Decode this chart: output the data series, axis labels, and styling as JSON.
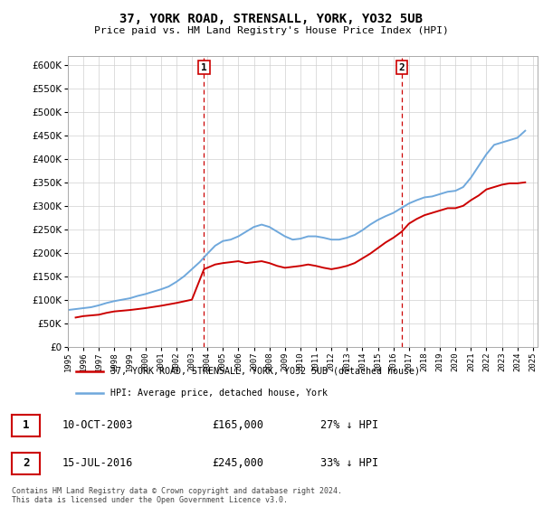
{
  "title": "37, YORK ROAD, STRENSALL, YORK, YO32 5UB",
  "subtitle": "Price paid vs. HM Land Registry's House Price Index (HPI)",
  "ylim": [
    0,
    620000
  ],
  "hpi_color": "#6fa8dc",
  "price_color": "#cc0000",
  "vline_color": "#cc0000",
  "marker1_year": 2003.78,
  "marker2_year": 2016.54,
  "sale1_label": "1",
  "sale2_label": "2",
  "legend_label1": "37, YORK ROAD, STRENSALL, YORK, YO32 5UB (detached house)",
  "legend_label2": "HPI: Average price, detached house, York",
  "table_row1": [
    "1",
    "10-OCT-2003",
    "£165,000",
    "27% ↓ HPI"
  ],
  "table_row2": [
    "2",
    "15-JUL-2016",
    "£245,000",
    "33% ↓ HPI"
  ],
  "footer": "Contains HM Land Registry data © Crown copyright and database right 2024.\nThis data is licensed under the Open Government Licence v3.0.",
  "hpi_x": [
    1995,
    1995.5,
    1996,
    1996.5,
    1997,
    1997.5,
    1998,
    1998.5,
    1999,
    1999.5,
    2000,
    2000.5,
    2001,
    2001.5,
    2002,
    2002.5,
    2003,
    2003.5,
    2004,
    2004.5,
    2005,
    2005.5,
    2006,
    2006.5,
    2007,
    2007.5,
    2008,
    2008.5,
    2009,
    2009.5,
    2010,
    2010.5,
    2011,
    2011.5,
    2012,
    2012.5,
    2013,
    2013.5,
    2014,
    2014.5,
    2015,
    2015.5,
    2016,
    2016.5,
    2017,
    2017.5,
    2018,
    2018.5,
    2019,
    2019.5,
    2020,
    2020.5,
    2021,
    2021.5,
    2022,
    2022.5,
    2023,
    2023.5,
    2024,
    2024.5
  ],
  "hpi_y": [
    78000,
    80000,
    82000,
    84000,
    88000,
    93000,
    97000,
    100000,
    103000,
    108000,
    112000,
    117000,
    122000,
    128000,
    138000,
    150000,
    165000,
    180000,
    198000,
    215000,
    225000,
    228000,
    235000,
    245000,
    255000,
    260000,
    255000,
    245000,
    235000,
    228000,
    230000,
    235000,
    235000,
    232000,
    228000,
    228000,
    232000,
    238000,
    248000,
    260000,
    270000,
    278000,
    285000,
    295000,
    305000,
    312000,
    318000,
    320000,
    325000,
    330000,
    332000,
    340000,
    360000,
    385000,
    410000,
    430000,
    435000,
    440000,
    445000,
    460000
  ],
  "price_x": [
    1995.5,
    1996.0,
    1997.0,
    1997.5,
    1998.0,
    1999.0,
    2000.0,
    2001.0,
    2002.0,
    2003.0,
    2003.78,
    2004.5,
    2005.0,
    2005.5,
    2006.0,
    2006.5,
    2007.0,
    2007.5,
    2008.0,
    2008.5,
    2009.0,
    2009.5,
    2010.0,
    2010.5,
    2011.0,
    2011.5,
    2012.0,
    2012.5,
    2013.0,
    2013.5,
    2014.0,
    2014.5,
    2015.0,
    2015.5,
    2016.0,
    2016.54,
    2017.0,
    2017.5,
    2018.0,
    2018.5,
    2019.0,
    2019.5,
    2020.0,
    2020.5,
    2021.0,
    2021.5,
    2022.0,
    2022.5,
    2023.0,
    2023.5,
    2024.0,
    2024.5
  ],
  "price_y": [
    62000,
    65000,
    68000,
    72000,
    75000,
    78000,
    82000,
    87000,
    93000,
    100000,
    165000,
    175000,
    178000,
    180000,
    182000,
    178000,
    180000,
    182000,
    178000,
    172000,
    168000,
    170000,
    172000,
    175000,
    172000,
    168000,
    165000,
    168000,
    172000,
    178000,
    188000,
    198000,
    210000,
    222000,
    232000,
    245000,
    262000,
    272000,
    280000,
    285000,
    290000,
    295000,
    295000,
    300000,
    312000,
    322000,
    335000,
    340000,
    345000,
    348000,
    348000,
    350000
  ]
}
